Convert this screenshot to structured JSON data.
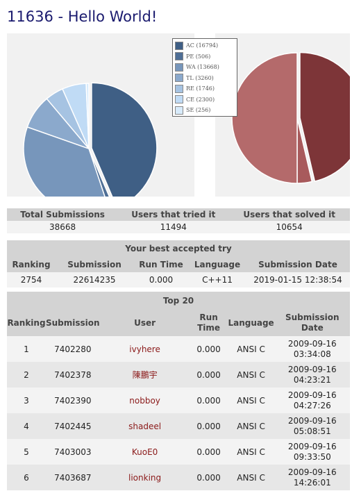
{
  "title": "11636 - Hello World!",
  "legend": [
    {
      "label": "AC (16794)",
      "color": "#3f5f85"
    },
    {
      "label": "PE (506)",
      "color": "#4f6f96"
    },
    {
      "label": "WA (13668)",
      "color": "#7796bb"
    },
    {
      "label": "TL (3260)",
      "color": "#8ba9cc"
    },
    {
      "label": "RE (1746)",
      "color": "#a6c3e2"
    },
    {
      "label": "CE (2300)",
      "color": "#c0dbf5"
    },
    {
      "label": "SE (256)",
      "color": "#d8ebfb"
    }
  ],
  "chart_data": [
    {
      "type": "pie",
      "name": "submissions",
      "values": [
        16794,
        506,
        13668,
        3260,
        1746,
        2300,
        256
      ],
      "colors": [
        "#3f5f85",
        "#4f6f96",
        "#7796bb",
        "#8ba9cc",
        "#a6c3e2",
        "#c0dbf5",
        "#d8ebfb"
      ]
    },
    {
      "type": "pie",
      "name": "users",
      "values": [
        10654,
        840,
        11494
      ],
      "colors": [
        "#7d3538",
        "#a85a5c",
        "#b46a6b"
      ]
    }
  ],
  "stats": {
    "headers": [
      "Total Submissions",
      "Users that tried it",
      "Users that solved it"
    ],
    "values": [
      "38668",
      "11494",
      "10654"
    ]
  },
  "best": {
    "caption": "Your best accepted try",
    "headers": [
      "Ranking",
      "Submission",
      "Run Time",
      "Language",
      "Submission Date"
    ],
    "values": [
      "2754",
      "22614235",
      "0.000",
      "C++11",
      "2019-01-15 12:38:54"
    ]
  },
  "top20": {
    "caption": "Top 20",
    "headers": [
      "Ranking",
      "Submission",
      "User",
      "Run Time",
      "Language",
      "Submission Date"
    ],
    "rows": [
      {
        "rank": "1",
        "submission": "7402280",
        "user": "ivyhere",
        "runtime": "0.000",
        "language": "ANSI C",
        "date": "2009-09-16",
        "time": "03:34:08"
      },
      {
        "rank": "2",
        "submission": "7402378",
        "user": "陳鵬宇",
        "runtime": "0.000",
        "language": "ANSI C",
        "date": "2009-09-16",
        "time": "04:23:21"
      },
      {
        "rank": "3",
        "submission": "7402390",
        "user": "nobboy",
        "runtime": "0.000",
        "language": "ANSI C",
        "date": "2009-09-16",
        "time": "04:27:26"
      },
      {
        "rank": "4",
        "submission": "7402445",
        "user": "shadeel",
        "runtime": "0.000",
        "language": "ANSI C",
        "date": "2009-09-16",
        "time": "05:08:51"
      },
      {
        "rank": "5",
        "submission": "7403003",
        "user": "KuoE0",
        "runtime": "0.000",
        "language": "ANSI C",
        "date": "2009-09-16",
        "time": "09:33:50"
      },
      {
        "rank": "6",
        "submission": "7403687",
        "user": "lionking",
        "runtime": "0.000",
        "language": "ANSI C",
        "date": "2009-09-16",
        "time": "14:26:01"
      }
    ]
  }
}
